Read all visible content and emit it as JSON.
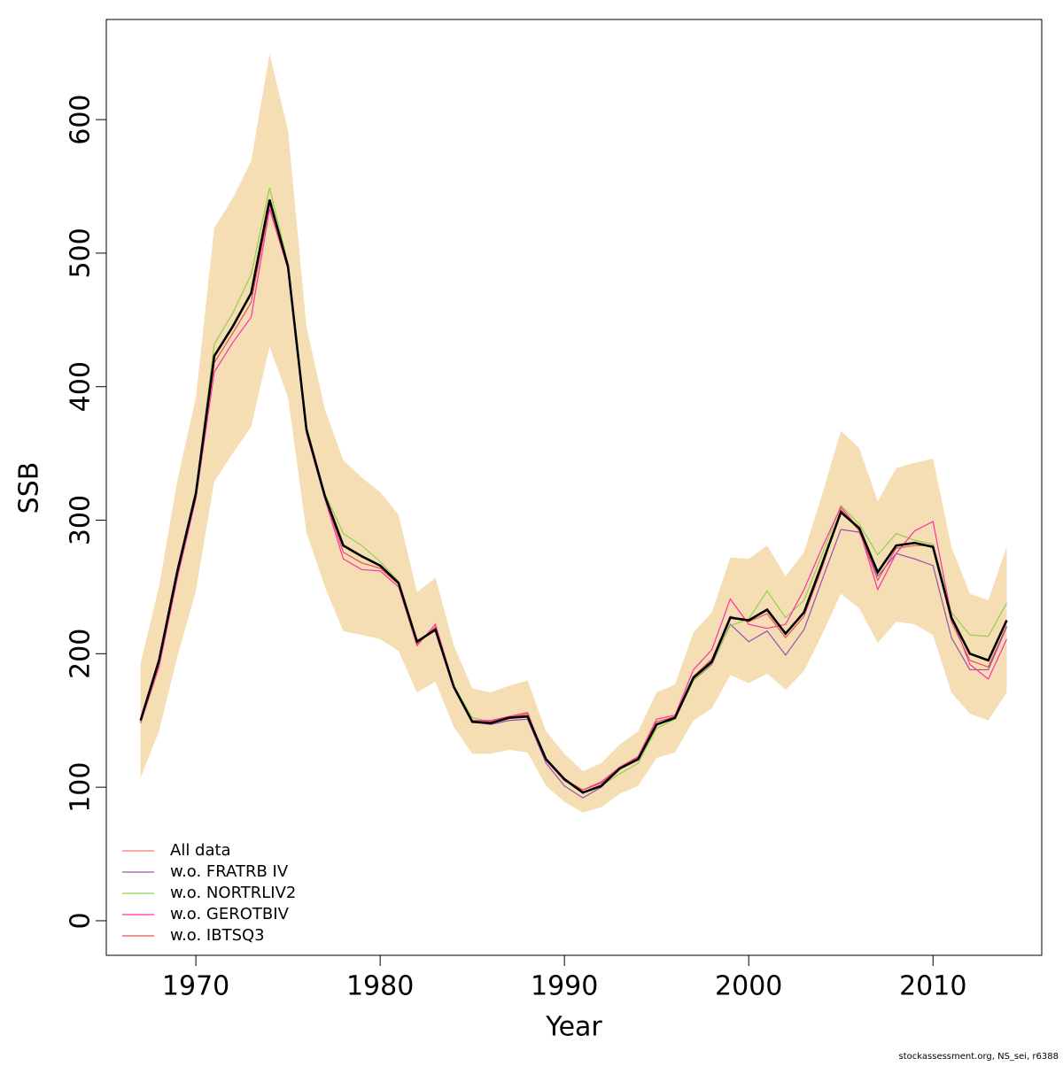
{
  "chart_data": {
    "type": "line",
    "x_label": "Year",
    "y_label": "SSB",
    "footer": "stockassessment.org, NS_sei, r6388",
    "x": [
      1967,
      1968,
      1969,
      1970,
      1971,
      1972,
      1973,
      1974,
      1975,
      1976,
      1977,
      1978,
      1979,
      1980,
      1981,
      1982,
      1983,
      1984,
      1985,
      1986,
      1987,
      1988,
      1989,
      1990,
      1991,
      1992,
      1993,
      1994,
      1995,
      1996,
      1997,
      1998,
      1999,
      2000,
      2001,
      2002,
      2003,
      2004,
      2005,
      2006,
      2007,
      2008,
      2009,
      2010,
      2011,
      2012,
      2013,
      2014
    ],
    "values": [
      150,
      195,
      262,
      320,
      423,
      445,
      470,
      540,
      490,
      368,
      318,
      281,
      273,
      266,
      253,
      209,
      218,
      175,
      149,
      148,
      152,
      153,
      121,
      106,
      96,
      101,
      114,
      121,
      147,
      152,
      182,
      194,
      227,
      225,
      233,
      215,
      231,
      268,
      306,
      294,
      261,
      281,
      283,
      280,
      227,
      200,
      195,
      225
    ],
    "color": "#000000",
    "band": {
      "color": "#f5deb3",
      "upper": [
        193,
        250,
        330,
        392,
        519,
        541,
        569,
        649,
        592,
        445,
        383,
        345,
        332,
        321,
        304,
        246,
        257,
        206,
        174,
        171,
        176,
        180,
        142,
        125,
        112,
        118,
        132,
        142,
        171,
        177,
        216,
        231,
        272,
        271,
        281,
        258,
        276,
        320,
        367,
        354,
        314,
        339,
        343,
        346,
        280,
        245,
        240,
        280
      ],
      "lower": [
        107,
        142,
        198,
        247,
        329,
        350,
        370,
        430,
        392,
        291,
        250,
        217,
        214,
        211,
        202,
        171,
        179,
        145,
        125,
        125,
        128,
        126,
        101,
        89,
        81,
        85,
        95,
        101,
        122,
        126,
        150,
        159,
        184,
        178,
        185,
        173,
        187,
        215,
        245,
        234,
        208,
        224,
        222,
        214,
        171,
        155,
        150,
        171
      ]
    },
    "series": [
      {
        "name": "All data",
        "color": "#f07878",
        "values": [
          150,
          195,
          262,
          320,
          423,
          445,
          470,
          540,
          490,
          368,
          318,
          281,
          273,
          266,
          253,
          209,
          218,
          175,
          149,
          148,
          152,
          153,
          121,
          106,
          96,
          101,
          114,
          121,
          147,
          152,
          182,
          194,
          227,
          225,
          233,
          215,
          231,
          268,
          306,
          294,
          261,
          281,
          283,
          280,
          227,
          200,
          195,
          225
        ]
      },
      {
        "name": "w.o. FRATRB IV",
        "color": "#9a4fb0",
        "values": [
          150,
          195,
          262,
          320,
          423,
          445,
          470,
          540,
          490,
          368,
          318,
          281,
          273,
          266,
          253,
          209,
          218,
          175,
          149,
          147,
          150,
          151,
          118,
          101,
          92,
          100,
          114,
          121,
          147,
          151,
          180,
          192,
          222,
          209,
          217,
          199,
          218,
          256,
          293,
          291,
          258,
          275,
          271,
          266,
          212,
          188,
          188,
          220
        ]
      },
      {
        "name": "w.o. NORTRLIV2",
        "color": "#8fd14f",
        "values": [
          150,
          196,
          264,
          322,
          432,
          455,
          484,
          549,
          492,
          370,
          320,
          290,
          281,
          269,
          254,
          210,
          217,
          176,
          152,
          149,
          153,
          154,
          122,
          106,
          96,
          101,
          110,
          118,
          144,
          151,
          180,
          193,
          221,
          226,
          247,
          227,
          240,
          275,
          311,
          297,
          274,
          290,
          285,
          282,
          231,
          214,
          213,
          238
        ]
      },
      {
        "name": "w.o. GEROTBIV",
        "color": "#ff2fa8",
        "values": [
          148,
          190,
          257,
          316,
          411,
          433,
          452,
          533,
          488,
          365,
          316,
          271,
          263,
          262,
          250,
          206,
          222,
          176,
          150,
          150,
          153,
          156,
          120,
          105,
          98,
          104,
          115,
          123,
          151,
          154,
          188,
          203,
          241,
          222,
          219,
          222,
          248,
          280,
          310,
          293,
          248,
          275,
          292,
          299,
          228,
          192,
          181,
          211
        ]
      },
      {
        "name": "w.o. IBTSQ3",
        "color": "#e8505b",
        "values": [
          148,
          192,
          260,
          318,
          418,
          440,
          463,
          536,
          489,
          366,
          317,
          276,
          268,
          264,
          252,
          207,
          220,
          175,
          150,
          149,
          152,
          155,
          121,
          106,
          98,
          103,
          115,
          122,
          149,
          153,
          183,
          196,
          228,
          224,
          230,
          212,
          228,
          265,
          308,
          292,
          255,
          279,
          281,
          281,
          224,
          195,
          190,
          221
        ]
      }
    ],
    "xlim": [
      1965.14,
      2015.9
    ],
    "xticks": [
      1970,
      1980,
      1990,
      2000,
      2010
    ],
    "ylim": [
      -25.9,
      675
    ],
    "yticks": [
      0,
      100,
      200,
      300,
      400,
      500,
      600
    ],
    "legend": "bottom-left"
  }
}
